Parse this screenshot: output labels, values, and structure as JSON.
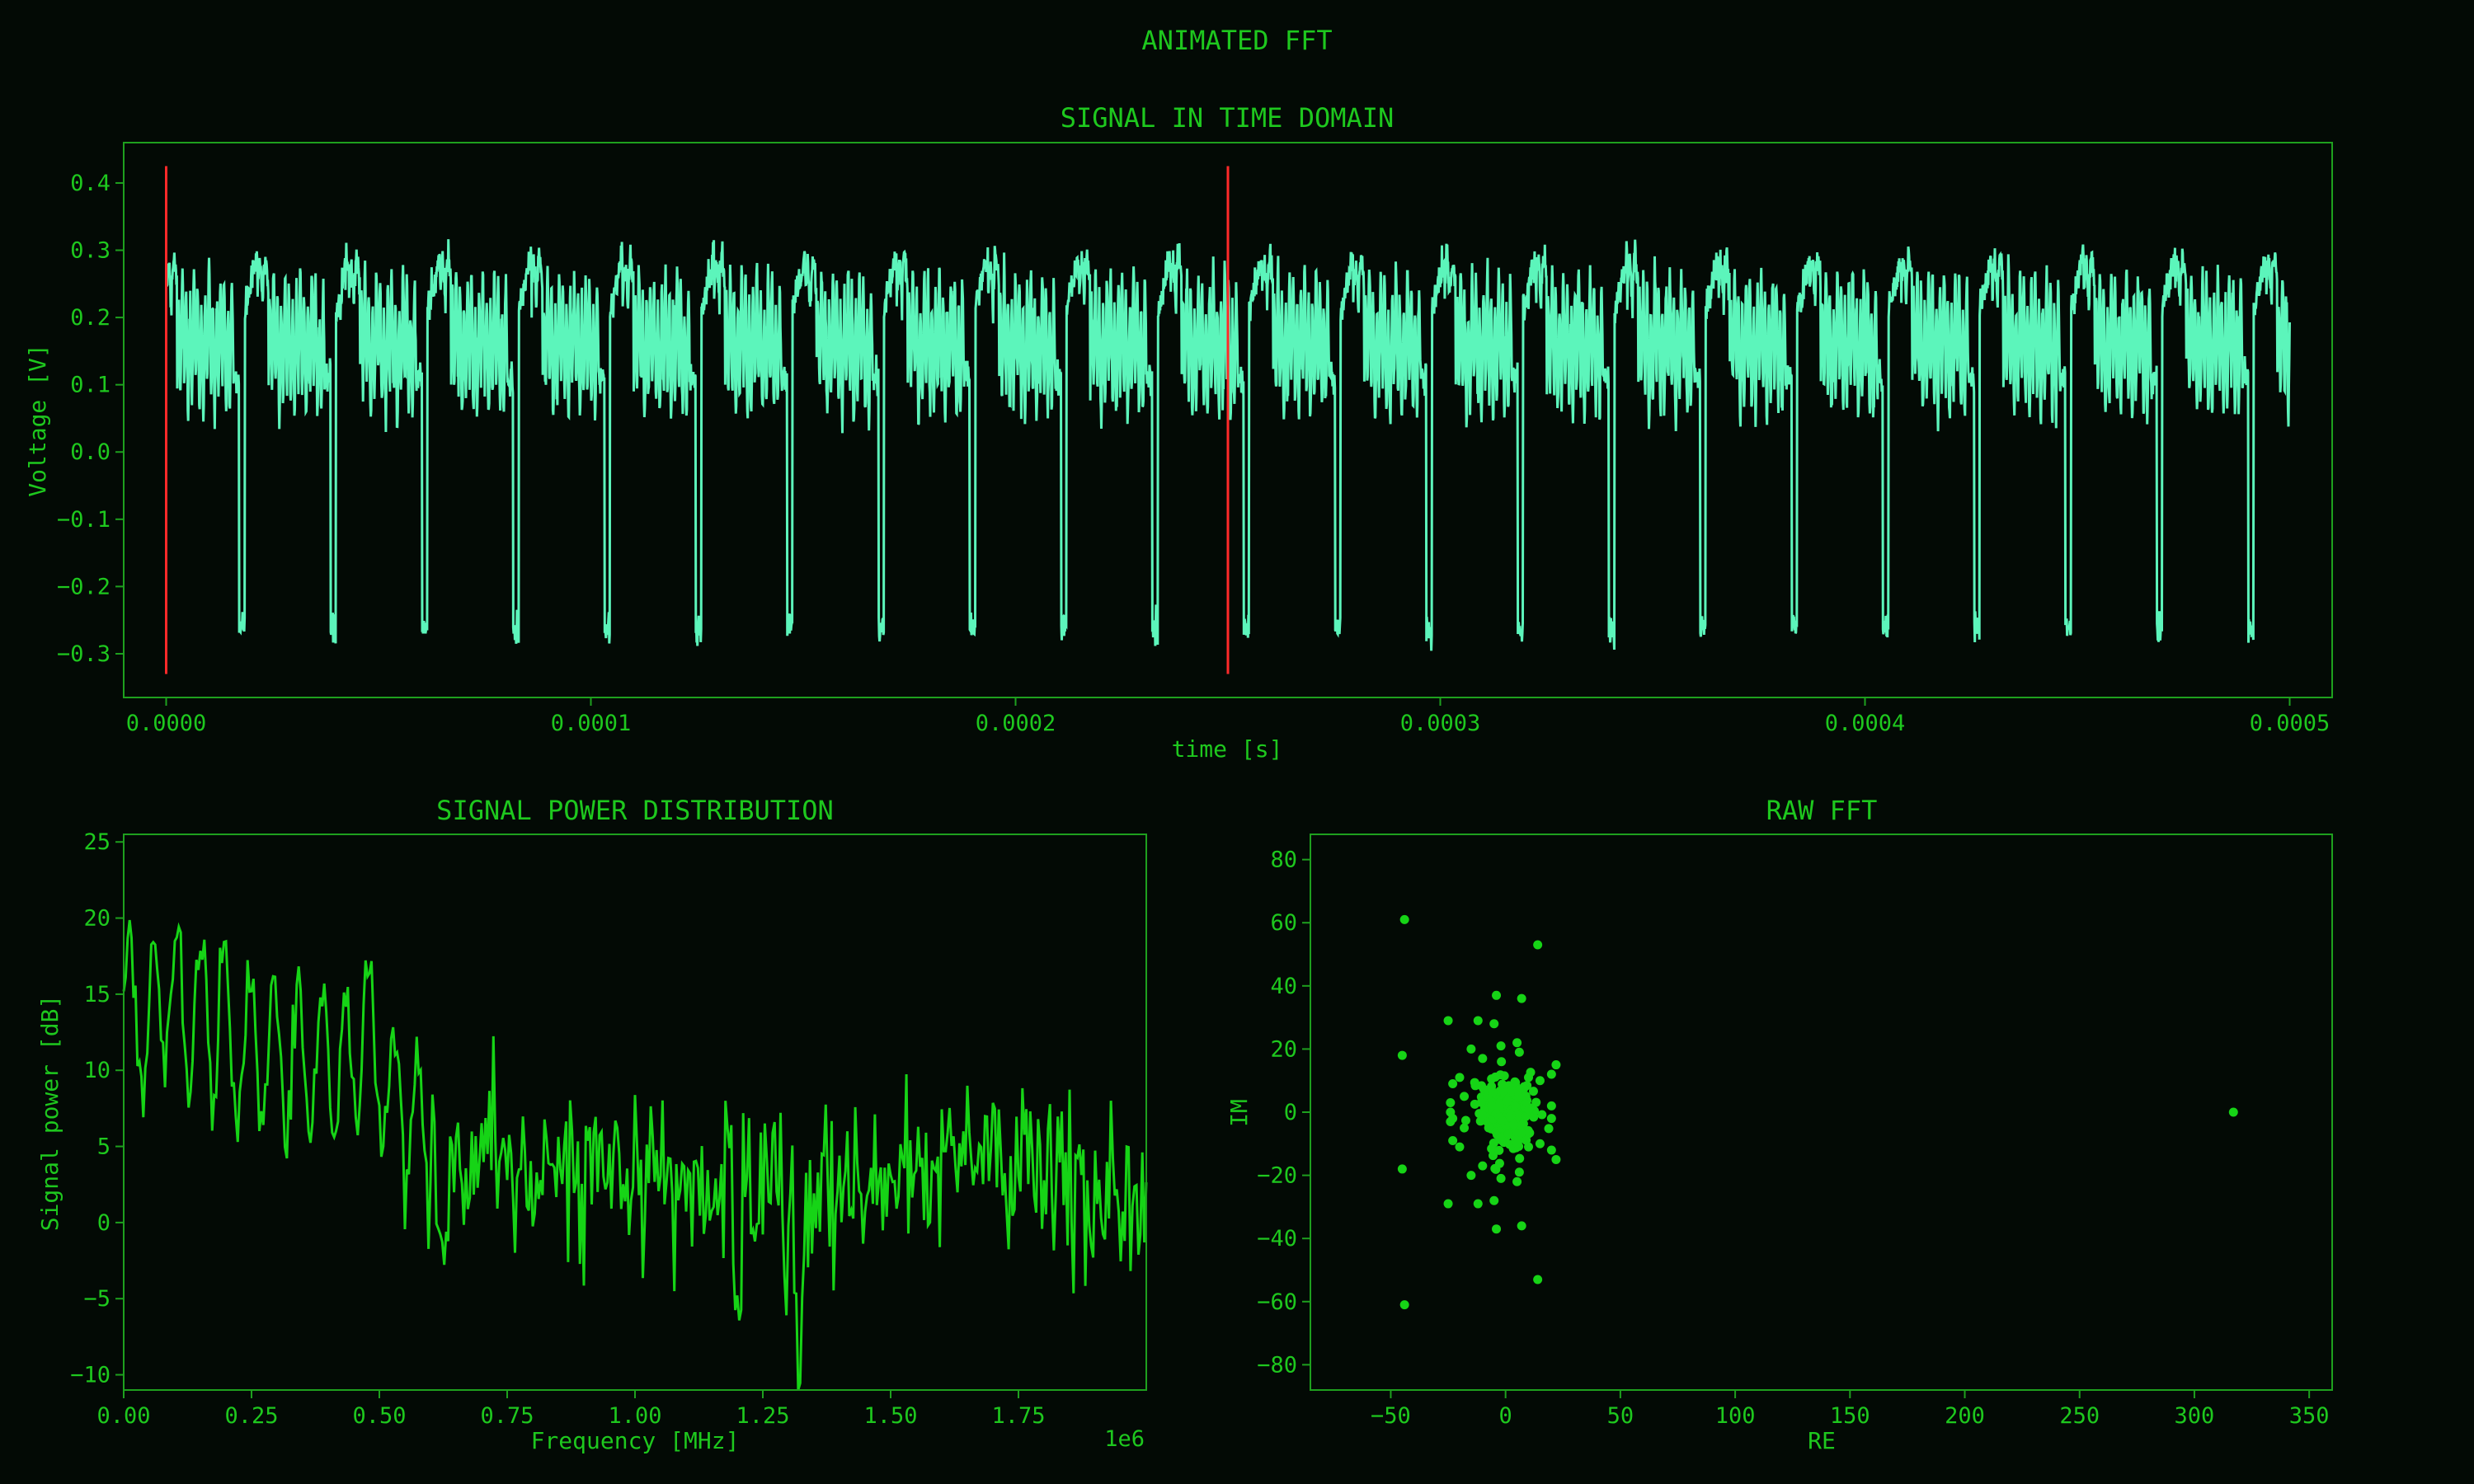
{
  "figure": {
    "title": "ANIMATED FFT",
    "background": "#030a05",
    "text_color": "#1ec81e",
    "axes_color": "#1ea01e"
  },
  "chart_data": [
    {
      "id": "time",
      "type": "line",
      "title": "SIGNAL IN TIME DOMAIN",
      "xlabel": "time [s]",
      "ylabel": "Voltage [V]",
      "xlim": [
        -1e-05,
        0.00051
      ],
      "ylim": [
        -0.365,
        0.46
      ],
      "xticks": [
        0,
        0.0001,
        0.0002,
        0.0003,
        0.0004,
        0.0005
      ],
      "xtick_labels": [
        "0.0000",
        "0.0001",
        "0.0002",
        "0.0003",
        "0.0004",
        "0.0005"
      ],
      "yticks": [
        -0.3,
        -0.2,
        -0.1,
        0,
        0.1,
        0.2,
        0.3,
        0.4
      ],
      "ytick_labels": [
        "−0.3",
        "−0.2",
        "−0.1",
        "0.0",
        "0.1",
        "0.2",
        "0.3",
        "0.4"
      ],
      "line_color": "#5cf5bb",
      "marker_color": "#ff2a2a",
      "markers": [
        {
          "x": 0,
          "y0": -0.33,
          "y1": 0.425
        },
        {
          "x": 0.00025,
          "y0": -0.33,
          "y1": 0.425
        }
      ],
      "signal": {
        "x_start": 0,
        "x_end": 0.0005,
        "burst_period_s": 2.15e-05,
        "high_level_v": 0.27,
        "low_level_v": -0.27,
        "oscillation_mid_v": 0.16,
        "oscillation_amplitude_v": 0.08
      },
      "grid": false
    },
    {
      "id": "power",
      "type": "line",
      "title": "SIGNAL POWER DISTRIBUTION",
      "xlabel": "Frequency [MHz]",
      "ylabel": "Signal power [dB]",
      "x_offset_label": "1e6",
      "xlim": [
        0,
        2000000
      ],
      "ylim": [
        -11,
        25.5
      ],
      "xticks": [
        0,
        250000,
        500000,
        750000,
        1000000,
        1250000,
        1500000,
        1750000
      ],
      "xtick_labels": [
        "0.00",
        "0.25",
        "0.50",
        "0.75",
        "1.00",
        "1.25",
        "1.50",
        "1.75"
      ],
      "yticks": [
        -10,
        -5,
        0,
        5,
        10,
        15,
        20,
        25
      ],
      "ytick_labels": [
        "−10",
        "−5",
        "0",
        "5",
        "10",
        "15",
        "20",
        "25"
      ],
      "line_color": "#16d416",
      "envelope": {
        "x": [
          0,
          250000,
          500000,
          600000,
          900000,
          1200000,
          1400000,
          1650000,
          2000000
        ],
        "y": [
          14,
          11,
          10,
          4,
          3.5,
          2,
          1.5,
          4.5,
          2.5
        ]
      },
      "peaks": [
        {
          "x": 90000,
          "y": 19
        },
        {
          "x": 140000,
          "y": 17
        },
        {
          "x": 190000,
          "y": 16
        },
        {
          "x": 470000,
          "y": 14.5
        },
        {
          "x": 1320000,
          "y": -11
        },
        {
          "x": 1200000,
          "y": -7.5
        },
        {
          "x": 630000,
          "y": -6
        }
      ],
      "grid": false
    },
    {
      "id": "fft",
      "type": "scatter",
      "title": "RAW FFT",
      "xlabel": "RE",
      "ylabel": "IM",
      "xlim": [
        -85,
        360
      ],
      "ylim": [
        -88,
        88
      ],
      "xticks": [
        -50,
        0,
        50,
        100,
        150,
        200,
        250,
        300,
        350
      ],
      "xtick_labels": [
        "−50",
        "0",
        "50",
        "100",
        "150",
        "200",
        "250",
        "300",
        "350"
      ],
      "yticks": [
        -80,
        -60,
        -40,
        -20,
        0,
        20,
        40,
        60,
        80
      ],
      "ytick_labels": [
        "−80",
        "−60",
        "−40",
        "−20",
        "0",
        "20",
        "40",
        "60",
        "80"
      ],
      "point_color": "#16d416",
      "points": [
        [
          -44,
          61
        ],
        [
          -44,
          -61
        ],
        [
          14,
          53
        ],
        [
          14,
          -53
        ],
        [
          317,
          0
        ],
        [
          -45,
          18
        ],
        [
          -45,
          -18
        ],
        [
          -25,
          29
        ],
        [
          -25,
          -29
        ],
        [
          -4,
          37
        ],
        [
          -4,
          -37
        ],
        [
          7,
          36
        ],
        [
          7,
          -36
        ],
        [
          -5,
          28
        ],
        [
          -5,
          -28
        ],
        [
          22,
          15
        ],
        [
          22,
          -15
        ],
        [
          20,
          12
        ],
        [
          20,
          -12
        ],
        [
          -15,
          20
        ],
        [
          -15,
          -20
        ],
        [
          -12,
          29
        ],
        [
          -12,
          -29
        ],
        [
          -23,
          9
        ],
        [
          -23,
          -9
        ],
        [
          -20,
          11
        ],
        [
          -20,
          -11
        ],
        [
          -24,
          3
        ],
        [
          -24,
          -3
        ],
        [
          -24,
          0
        ],
        [
          -23,
          -2
        ],
        [
          5,
          22
        ],
        [
          5,
          -22
        ],
        [
          6,
          19
        ],
        [
          6,
          -19
        ],
        [
          -2,
          -21
        ],
        [
          -2,
          21
        ],
        [
          15,
          10
        ],
        [
          15,
          -10
        ],
        [
          -10,
          17
        ],
        [
          -10,
          -17
        ],
        [
          20,
          2
        ],
        [
          20,
          -2
        ],
        [
          -18,
          5
        ],
        [
          -18,
          -5
        ],
        [
          10,
          -11
        ],
        [
          10,
          11
        ]
      ],
      "cluster": {
        "center": [
          0,
          0
        ],
        "spread_re": 10,
        "spread_im": 9,
        "count": 260
      },
      "grid": false
    }
  ]
}
